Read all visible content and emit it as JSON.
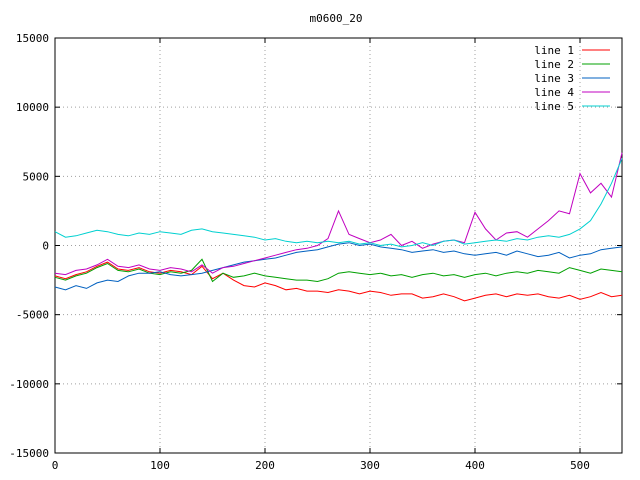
{
  "chart_data": {
    "type": "line",
    "title": "m0600_20",
    "xlabel": "",
    "ylabel": "",
    "xlim": [
      0,
      540
    ],
    "ylim": [
      -15000,
      15000
    ],
    "x_ticks": [
      0,
      100,
      200,
      300,
      400,
      500
    ],
    "y_ticks": [
      -15000,
      -10000,
      -5000,
      0,
      5000,
      10000,
      15000
    ],
    "grid": true,
    "legend_position": "top-right",
    "x": [
      0,
      10,
      20,
      30,
      40,
      50,
      60,
      70,
      80,
      90,
      100,
      110,
      120,
      130,
      140,
      150,
      160,
      170,
      180,
      190,
      200,
      210,
      220,
      230,
      240,
      250,
      260,
      270,
      280,
      290,
      300,
      310,
      320,
      330,
      340,
      350,
      360,
      370,
      380,
      390,
      400,
      410,
      420,
      430,
      440,
      450,
      460,
      470,
      480,
      490,
      500,
      510,
      520,
      530,
      540
    ],
    "series": [
      {
        "name": "line 1",
        "color": "#ff0000",
        "values": [
          -2200,
          -2400,
          -2100,
          -1900,
          -1500,
          -1200,
          -1700,
          -1800,
          -1600,
          -1900,
          -2000,
          -1800,
          -1900,
          -2100,
          -1500,
          -2400,
          -2000,
          -2500,
          -2900,
          -3000,
          -2700,
          -2900,
          -3200,
          -3100,
          -3300,
          -3300,
          -3400,
          -3200,
          -3300,
          -3500,
          -3300,
          -3400,
          -3600,
          -3500,
          -3500,
          -3800,
          -3700,
          -3500,
          -3700,
          -4000,
          -3800,
          -3600,
          -3500,
          -3700,
          -3500,
          -3600,
          -3500,
          -3700,
          -3800,
          -3600,
          -3900,
          -3700,
          -3400,
          -3700,
          -3600
        ]
      },
      {
        "name": "line 2",
        "color": "#00a000",
        "values": [
          -2300,
          -2500,
          -2200,
          -2000,
          -1600,
          -1300,
          -1800,
          -1900,
          -1700,
          -2000,
          -2100,
          -1900,
          -2000,
          -1800,
          -1000,
          -2600,
          -2000,
          -2300,
          -2200,
          -2000,
          -2200,
          -2300,
          -2400,
          -2500,
          -2500,
          -2600,
          -2400,
          -2000,
          -1900,
          -2000,
          -2100,
          -2000,
          -2200,
          -2100,
          -2300,
          -2100,
          -2000,
          -2200,
          -2100,
          -2300,
          -2100,
          -2000,
          -2200,
          -2000,
          -1900,
          -2000,
          -1800,
          -1900,
          -2000,
          -1600,
          -1800,
          -2000,
          -1700,
          -1800,
          -1900
        ]
      },
      {
        "name": "line 3",
        "color": "#0060c0",
        "values": [
          -3000,
          -3200,
          -2900,
          -3100,
          -2700,
          -2500,
          -2600,
          -2200,
          -2000,
          -2000,
          -1900,
          -2100,
          -2200,
          -2100,
          -2000,
          -1800,
          -1600,
          -1400,
          -1200,
          -1100,
          -1000,
          -900,
          -700,
          -500,
          -400,
          -300,
          -100,
          100,
          200,
          0,
          100,
          -100,
          -200,
          -300,
          -500,
          -400,
          -300,
          -500,
          -400,
          -600,
          -700,
          -600,
          -500,
          -700,
          -400,
          -600,
          -800,
          -700,
          -500,
          -900,
          -700,
          -600,
          -300,
          -200,
          -100
        ]
      },
      {
        "name": "line 4",
        "color": "#c000c0",
        "values": [
          -2000,
          -2100,
          -1800,
          -1700,
          -1400,
          -1000,
          -1500,
          -1600,
          -1400,
          -1700,
          -1800,
          -1600,
          -1700,
          -1900,
          -1400,
          -2000,
          -1600,
          -1500,
          -1300,
          -1100,
          -900,
          -700,
          -500,
          -300,
          -200,
          0,
          500,
          2500,
          800,
          500,
          200,
          400,
          800,
          0,
          300,
          -200,
          100,
          300,
          400,
          200,
          2400,
          1200,
          400,
          900,
          1000,
          600,
          1200,
          1800,
          2500,
          2300,
          5200,
          3800,
          4500,
          3500,
          6700
        ]
      },
      {
        "name": "line 5",
        "color": "#00d0d0",
        "values": [
          1000,
          600,
          700,
          900,
          1100,
          1000,
          800,
          700,
          900,
          800,
          1000,
          900,
          800,
          1100,
          1200,
          1000,
          900,
          800,
          700,
          600,
          400,
          500,
          300,
          200,
          300,
          200,
          300,
          200,
          300,
          100,
          200,
          0,
          100,
          -100,
          0,
          200,
          0,
          300,
          400,
          100,
          200,
          300,
          400,
          300,
          500,
          400,
          600,
          700,
          600,
          800,
          1200,
          1800,
          3000,
          4500,
          6300
        ]
      }
    ]
  }
}
